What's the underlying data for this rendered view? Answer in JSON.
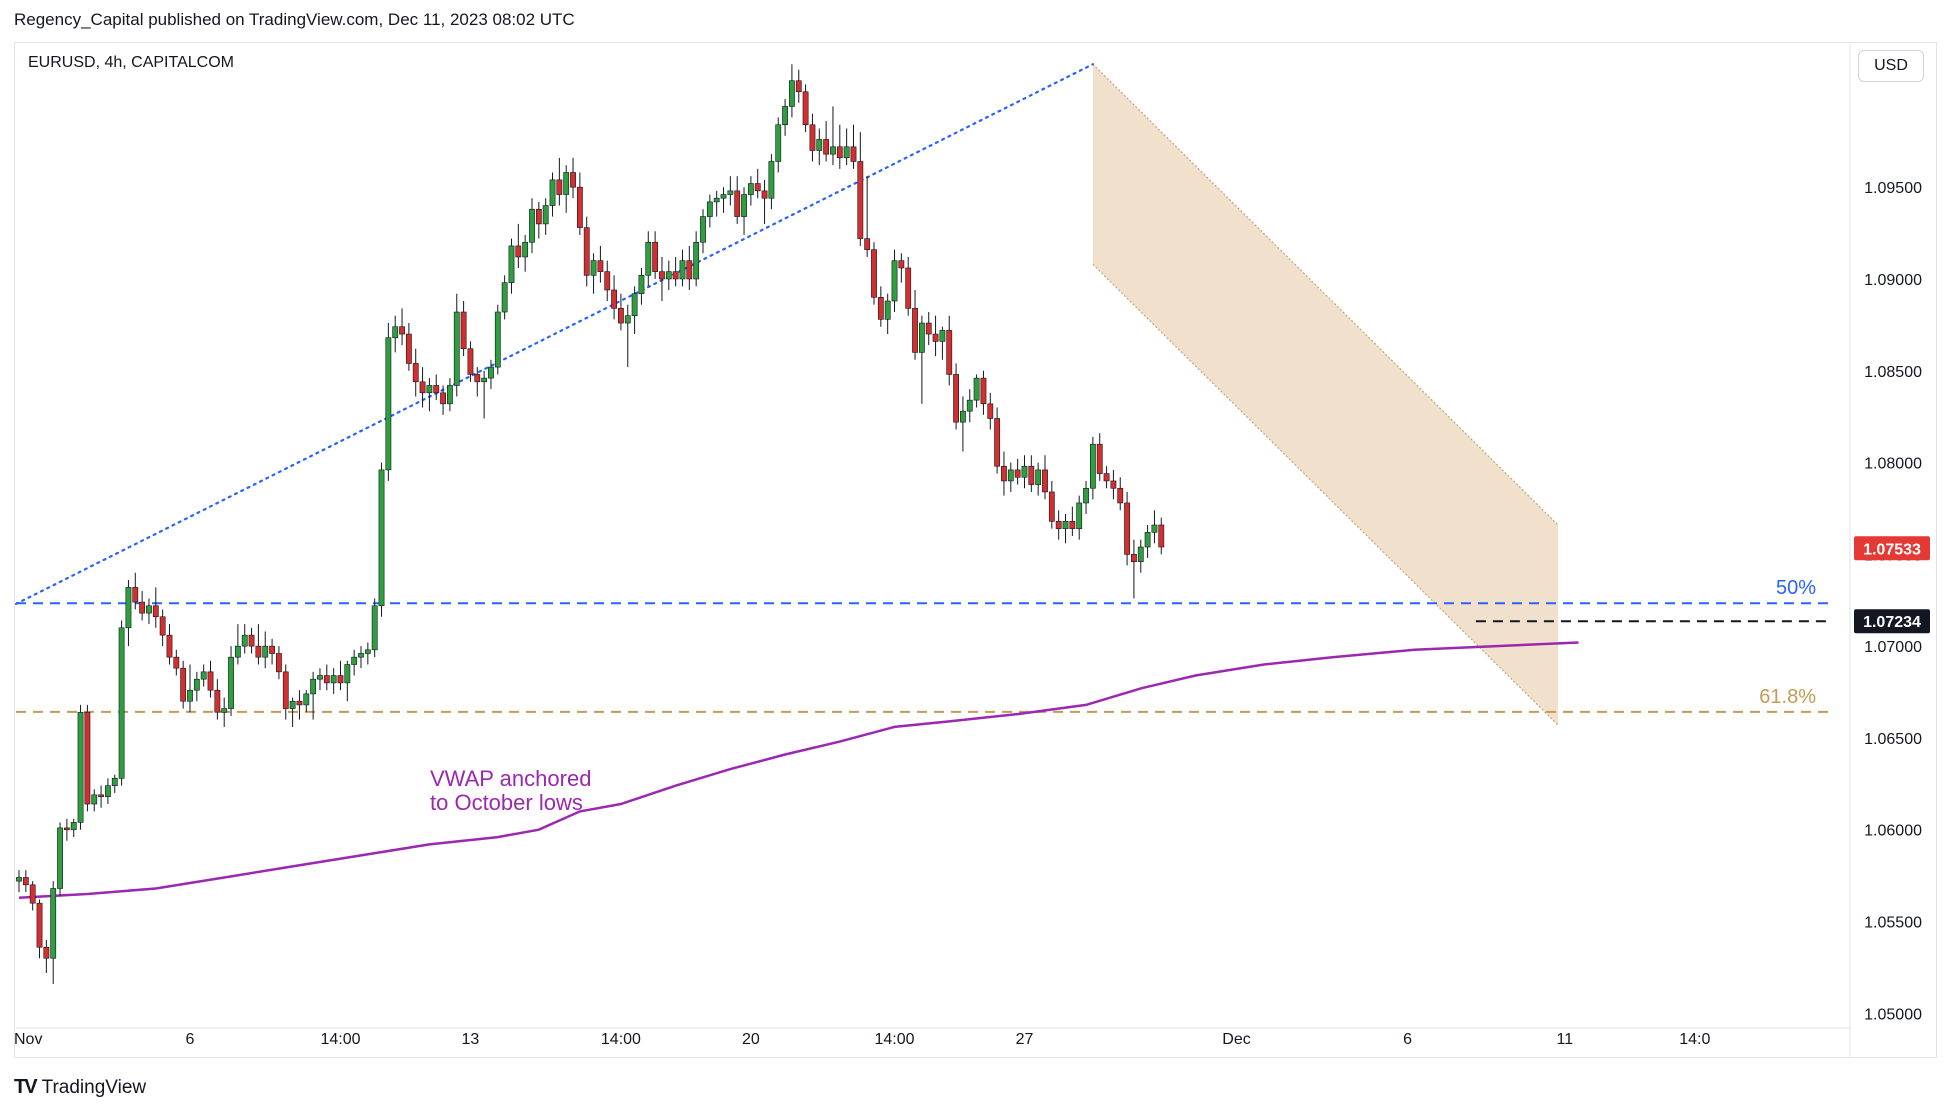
{
  "header": {
    "publisher_line": "Regency_Capital published on TradingView.com, Dec 11, 2023 08:02 UTC",
    "symbol_title": "EURUSD, 4h, CAPITALCOM",
    "currency_button": "USD"
  },
  "footer": {
    "brand_icon": "TV",
    "brand": "TradingView"
  },
  "colors": {
    "up": "#26a69a",
    "up_body": "#2e9e3f",
    "down": "#d32f2f",
    "vwap": "#9c27b0",
    "fib50": "#2962ff",
    "fib618": "#c49a55",
    "channel_fill": "#efdcc3",
    "trend": "#2962ff"
  },
  "chart_data": {
    "type": "candlestick",
    "symbol": "EURUSD",
    "timeframe": "4h",
    "ylim": [
      1.0492,
      1.1028
    ],
    "y_ticks": [
      "1.05000",
      "1.05500",
      "1.06000",
      "1.06500",
      "1.07000",
      "1.07500",
      "1.08000",
      "1.08500",
      "1.09000",
      "1.09500"
    ],
    "y_tick_values": [
      1.05,
      1.055,
      1.06,
      1.065,
      1.07,
      1.075,
      1.08,
      1.085,
      1.09,
      1.095
    ],
    "x_ticks": [
      {
        "label": "Nov",
        "bar": 0
      },
      {
        "label": "6",
        "bar": 25
      },
      {
        "label": "14:00",
        "bar": 47
      },
      {
        "label": "13",
        "bar": 66
      },
      {
        "label": "14:00",
        "bar": 88
      },
      {
        "label": "20",
        "bar": 107
      },
      {
        "label": "14:00",
        "bar": 128
      },
      {
        "label": "27",
        "bar": 147
      },
      {
        "label": "Dec",
        "bar": 178
      },
      {
        "label": "6",
        "bar": 203
      },
      {
        "label": "11",
        "bar": 226
      },
      {
        "label": "14:0",
        "bar": 245
      }
    ],
    "bar_count": 250,
    "candles": [
      [
        1.0572,
        1.0578,
        1.0566,
        1.0574
      ],
      [
        1.0574,
        1.0578,
        1.0566,
        1.057
      ],
      [
        1.057,
        1.0572,
        1.0556,
        1.056
      ],
      [
        1.056,
        1.0562,
        1.053,
        1.0536
      ],
      [
        1.0536,
        1.054,
        1.0522,
        1.053
      ],
      [
        1.053,
        1.0572,
        1.0516,
        1.0568
      ],
      [
        1.0568,
        1.0604,
        1.0564,
        1.0601
      ],
      [
        1.0601,
        1.0606,
        1.0594,
        1.06
      ],
      [
        1.06,
        1.0606,
        1.0596,
        1.0604
      ],
      [
        1.0604,
        1.0668,
        1.06,
        1.0664
      ],
      [
        1.0664,
        1.0668,
        1.061,
        1.0614
      ],
      [
        1.0614,
        1.0622,
        1.061,
        1.0619
      ],
      [
        1.0619,
        1.0624,
        1.0612,
        1.0618
      ],
      [
        1.0618,
        1.0628,
        1.0614,
        1.0624
      ],
      [
        1.0624,
        1.063,
        1.062,
        1.0628
      ],
      [
        1.0628,
        1.0714,
        1.0624,
        1.071
      ],
      [
        1.071,
        1.0736,
        1.07,
        1.0732
      ],
      [
        1.0732,
        1.074,
        1.072,
        1.0724
      ],
      [
        1.0724,
        1.073,
        1.0714,
        1.0718
      ],
      [
        1.0718,
        1.0726,
        1.0712,
        1.0722
      ],
      [
        1.0722,
        1.0732,
        1.071,
        1.0716
      ],
      [
        1.0716,
        1.072,
        1.07,
        1.0706
      ],
      [
        1.0706,
        1.0712,
        1.069,
        1.0694
      ],
      [
        1.0694,
        1.0698,
        1.0684,
        1.0688
      ],
      [
        1.0688,
        1.0692,
        1.0666,
        1.067
      ],
      [
        1.067,
        1.069,
        1.0664,
        1.0676
      ],
      [
        1.0676,
        1.0686,
        1.067,
        1.0682
      ],
      [
        1.0682,
        1.069,
        1.0678,
        1.0686
      ],
      [
        1.0686,
        1.0692,
        1.0672,
        1.0676
      ],
      [
        1.0676,
        1.0682,
        1.066,
        1.0664
      ],
      [
        1.0664,
        1.0672,
        1.0656,
        1.0666
      ],
      [
        1.0666,
        1.07,
        1.0662,
        1.0694
      ],
      [
        1.0694,
        1.0712,
        1.069,
        1.07
      ],
      [
        1.07,
        1.0712,
        1.0696,
        1.0706
      ],
      [
        1.0706,
        1.071,
        1.0696,
        1.07
      ],
      [
        1.07,
        1.0712,
        1.069,
        1.0694
      ],
      [
        1.0694,
        1.0708,
        1.0688,
        1.07
      ],
      [
        1.07,
        1.0704,
        1.069,
        1.0696
      ],
      [
        1.0696,
        1.07,
        1.0682,
        1.0686
      ],
      [
        1.0686,
        1.069,
        1.066,
        1.0666
      ],
      [
        1.0666,
        1.0672,
        1.0656,
        1.067
      ],
      [
        1.067,
        1.0676,
        1.066,
        1.0668
      ],
      [
        1.0668,
        1.0676,
        1.0664,
        1.0674
      ],
      [
        1.0674,
        1.0686,
        1.066,
        1.0682
      ],
      [
        1.0682,
        1.0688,
        1.0676,
        1.0684
      ],
      [
        1.0684,
        1.069,
        1.0676,
        1.068
      ],
      [
        1.068,
        1.0688,
        1.0674,
        1.0684
      ],
      [
        1.0684,
        1.0692,
        1.0676,
        1.068
      ],
      [
        1.068,
        1.0692,
        1.067,
        1.069
      ],
      [
        1.069,
        1.0698,
        1.0684,
        1.0694
      ],
      [
        1.0694,
        1.07,
        1.0688,
        1.0696
      ],
      [
        1.0696,
        1.0702,
        1.069,
        1.0698
      ],
      [
        1.0698,
        1.0726,
        1.0694,
        1.0722
      ],
      [
        1.0722,
        1.08,
        1.0716,
        1.0796
      ],
      [
        1.0796,
        1.0876,
        1.079,
        1.0868
      ],
      [
        1.0868,
        1.088,
        1.086,
        1.0874
      ],
      [
        1.0874,
        1.0884,
        1.0864,
        1.087
      ],
      [
        1.087,
        1.0876,
        1.085,
        1.0854
      ],
      [
        1.0854,
        1.0862,
        1.0836,
        1.0844
      ],
      [
        1.0844,
        1.0852,
        1.083,
        1.0838
      ],
      [
        1.0838,
        1.0846,
        1.0828,
        1.0842
      ],
      [
        1.0842,
        1.0848,
        1.0834,
        1.0838
      ],
      [
        1.0838,
        1.0842,
        1.0826,
        1.0832
      ],
      [
        1.0832,
        1.0846,
        1.0828,
        1.0842
      ],
      [
        1.0842,
        1.0892,
        1.0836,
        1.0882
      ],
      [
        1.0882,
        1.0888,
        1.0858,
        1.0862
      ],
      [
        1.0862,
        1.0866,
        1.0844,
        1.0848
      ],
      [
        1.0848,
        1.0852,
        1.0836,
        1.0844
      ],
      [
        1.0844,
        1.085,
        1.0824,
        1.0846
      ],
      [
        1.0846,
        1.0856,
        1.084,
        1.0852
      ],
      [
        1.0852,
        1.0886,
        1.0848,
        1.0882
      ],
      [
        1.0882,
        1.0902,
        1.0878,
        1.0898
      ],
      [
        1.0898,
        1.0922,
        1.0892,
        1.0918
      ],
      [
        1.0918,
        1.093,
        1.0906,
        1.0912
      ],
      [
        1.0912,
        1.0924,
        1.0904,
        1.092
      ],
      [
        1.092,
        1.0944,
        1.0914,
        1.0938
      ],
      [
        1.0938,
        1.0942,
        1.0922,
        1.093
      ],
      [
        1.093,
        1.0944,
        1.0924,
        1.094
      ],
      [
        1.094,
        1.0958,
        1.0934,
        1.0954
      ],
      [
        1.0954,
        1.0966,
        1.094,
        1.0946
      ],
      [
        1.0946,
        1.0962,
        1.0936,
        1.0958
      ],
      [
        1.0958,
        1.0966,
        1.0944,
        1.095
      ],
      [
        1.095,
        1.0958,
        1.0924,
        1.0928
      ],
      [
        1.0928,
        1.0934,
        1.0896,
        1.0902
      ],
      [
        1.0902,
        1.0914,
        1.0892,
        1.091
      ],
      [
        1.091,
        1.0918,
        1.0898,
        1.0904
      ],
      [
        1.0904,
        1.091,
        1.0888,
        1.0894
      ],
      [
        1.0894,
        1.0902,
        1.0878,
        1.0884
      ],
      [
        1.0884,
        1.0892,
        1.0872,
        1.0876
      ],
      [
        1.0876,
        1.0886,
        1.0852,
        1.088
      ],
      [
        1.088,
        1.0896,
        1.087,
        1.0892
      ],
      [
        1.0892,
        1.0906,
        1.0886,
        1.0902
      ],
      [
        1.0902,
        1.0926,
        1.0896,
        1.092
      ],
      [
        1.092,
        1.0926,
        1.09,
        1.0904
      ],
      [
        1.0904,
        1.0912,
        1.0888,
        1.09
      ],
      [
        1.09,
        1.091,
        1.0894,
        1.0904
      ],
      [
        1.0904,
        1.0912,
        1.0896,
        1.09
      ],
      [
        1.09,
        1.0916,
        1.0896,
        1.091
      ],
      [
        1.091,
        1.0918,
        1.0894,
        1.09
      ],
      [
        1.09,
        1.0926,
        1.0896,
        1.092
      ],
      [
        1.092,
        1.0938,
        1.0914,
        1.0934
      ],
      [
        1.0934,
        1.0946,
        1.0928,
        1.0942
      ],
      [
        1.0942,
        1.0948,
        1.0934,
        1.0944
      ],
      [
        1.0944,
        1.095,
        1.0936,
        1.0946
      ],
      [
        1.0946,
        1.0956,
        1.094,
        1.0948
      ],
      [
        1.0948,
        1.0956,
        1.093,
        1.0934
      ],
      [
        1.0934,
        1.095,
        1.0924,
        1.0946
      ],
      [
        1.0946,
        1.0956,
        1.094,
        1.0952
      ],
      [
        1.0952,
        1.096,
        1.0944,
        1.0948
      ],
      [
        1.0948,
        1.0954,
        1.093,
        1.0944
      ],
      [
        1.0944,
        1.0968,
        1.0938,
        1.0964
      ],
      [
        1.0964,
        1.0988,
        1.0958,
        1.0984
      ],
      [
        1.0984,
        1.0998,
        1.0978,
        1.0994
      ],
      [
        1.0994,
        1.1017,
        1.0988,
        1.1008
      ],
      [
        1.1008,
        1.1014,
        1.0996,
        1.1002
      ],
      [
        1.1002,
        1.1006,
        1.098,
        1.0984
      ],
      [
        1.0984,
        1.099,
        1.0964,
        1.097
      ],
      [
        1.097,
        1.0982,
        1.0962,
        1.0976
      ],
      [
        1.0976,
        1.0986,
        1.0964,
        1.0968
      ],
      [
        1.0968,
        1.0994,
        1.0962,
        1.0972
      ],
      [
        1.0972,
        1.0984,
        1.096,
        1.0966
      ],
      [
        1.0966,
        1.0982,
        1.0962,
        1.0972
      ],
      [
        1.0972,
        1.0984,
        1.096,
        1.0964
      ],
      [
        1.0964,
        1.098,
        1.0918,
        1.0922
      ],
      [
        1.0922,
        1.0956,
        1.0912,
        1.0916
      ],
      [
        1.0916,
        1.092,
        1.0886,
        1.089
      ],
      [
        1.089,
        1.0896,
        1.0874,
        1.0878
      ],
      [
        1.0878,
        1.0892,
        1.087,
        1.0888
      ],
      [
        1.0888,
        1.0916,
        1.0882,
        1.091
      ],
      [
        1.091,
        1.0914,
        1.0898,
        1.0906
      ],
      [
        1.0906,
        1.0912,
        1.088,
        1.0884
      ],
      [
        1.0884,
        1.0894,
        1.0856,
        1.086
      ],
      [
        1.086,
        1.088,
        1.0832,
        1.0876
      ],
      [
        1.0876,
        1.0882,
        1.0864,
        1.087
      ],
      [
        1.087,
        1.088,
        1.0858,
        1.0866
      ],
      [
        1.0866,
        1.0874,
        1.0856,
        1.0872
      ],
      [
        1.0872,
        1.088,
        1.0842,
        1.0848
      ],
      [
        1.0848,
        1.0854,
        1.0818,
        1.0822
      ],
      [
        1.0822,
        1.0836,
        1.0806,
        1.0828
      ],
      [
        1.0828,
        1.084,
        1.0822,
        1.0834
      ],
      [
        1.0834,
        1.0848,
        1.083,
        1.0846
      ],
      [
        1.0846,
        1.085,
        1.0826,
        1.0832
      ],
      [
        1.0832,
        1.0838,
        1.0818,
        1.0824
      ],
      [
        1.0824,
        1.083,
        1.0794,
        1.0798
      ],
      [
        1.0798,
        1.0806,
        1.0782,
        1.079
      ],
      [
        1.079,
        1.08,
        1.0784,
        1.0796
      ],
      [
        1.0796,
        1.0802,
        1.0788,
        1.0792
      ],
      [
        1.0792,
        1.0804,
        1.0786,
        1.0798
      ],
      [
        1.0798,
        1.0804,
        1.0784,
        1.0788
      ],
      [
        1.0788,
        1.08,
        1.0782,
        1.0796
      ],
      [
        1.0796,
        1.0804,
        1.078,
        1.0784
      ],
      [
        1.0784,
        1.079,
        1.0764,
        1.0768
      ],
      [
        1.0768,
        1.0774,
        1.0758,
        1.0764
      ],
      [
        1.0764,
        1.0772,
        1.0756,
        1.0768
      ],
      [
        1.0768,
        1.0776,
        1.076,
        1.0764
      ],
      [
        1.0764,
        1.0782,
        1.0758,
        1.0778
      ],
      [
        1.0778,
        1.079,
        1.0772,
        1.0786
      ],
      [
        1.0786,
        1.0814,
        1.078,
        1.081
      ],
      [
        1.081,
        1.0816,
        1.079,
        1.0794
      ],
      [
        1.0794,
        1.0798,
        1.0786,
        1.079
      ],
      [
        1.079,
        1.0796,
        1.078,
        1.0786
      ],
      [
        1.0786,
        1.0792,
        1.0774,
        1.0778
      ],
      [
        1.0778,
        1.0784,
        1.0744,
        1.075
      ],
      [
        1.075,
        1.0758,
        1.0726,
        1.0746
      ],
      [
        1.0746,
        1.0758,
        1.074,
        1.0754
      ],
      [
        1.0754,
        1.0766,
        1.0748,
        1.0762
      ],
      [
        1.0762,
        1.0774,
        1.0756,
        1.0766
      ],
      [
        1.0766,
        1.077,
        1.075,
        1.0754
      ]
    ],
    "candle_start_bar": 0,
    "vwap": {
      "label": "VWAP anchored\nto October lows",
      "points": [
        [
          0,
          1.0563
        ],
        [
          10,
          1.0565
        ],
        [
          20,
          1.0568
        ],
        [
          30,
          1.0574
        ],
        [
          40,
          1.058
        ],
        [
          50,
          1.0586
        ],
        [
          60,
          1.0592
        ],
        [
          70,
          1.0596
        ],
        [
          76,
          1.06
        ],
        [
          82,
          1.061
        ],
        [
          88,
          1.0614
        ],
        [
          96,
          1.0624
        ],
        [
          104,
          1.0633
        ],
        [
          112,
          1.0641
        ],
        [
          120,
          1.0648
        ],
        [
          128,
          1.0656
        ],
        [
          136,
          1.0659
        ],
        [
          146,
          1.0663
        ],
        [
          156,
          1.0668
        ],
        [
          164,
          1.0677
        ],
        [
          172,
          1.0684
        ],
        [
          182,
          1.069
        ],
        [
          192,
          1.0694
        ],
        [
          204,
          1.0698
        ],
        [
          216,
          1.07
        ],
        [
          228,
          1.0702
        ]
      ]
    },
    "fib_levels": [
      {
        "label": "50%",
        "price": 1.07234,
        "color": "#2962ff"
      },
      {
        "label": "61.8%",
        "price": 1.06642,
        "color": "#c49a55"
      }
    ],
    "trend_line": {
      "from": [
        0,
        1.0723
      ],
      "to": [
        157,
        1.1017
      ]
    },
    "channel": {
      "x_start": 157,
      "x_end": 225,
      "upper_start": 1.1017,
      "upper_end": 1.0766,
      "lower_start": 1.0908,
      "lower_end": 1.0657
    },
    "support_line": {
      "price": 1.07234,
      "from_bar": 213,
      "label": "1.07234"
    },
    "last_price": {
      "price": 1.07533,
      "label": "1.07533"
    }
  }
}
